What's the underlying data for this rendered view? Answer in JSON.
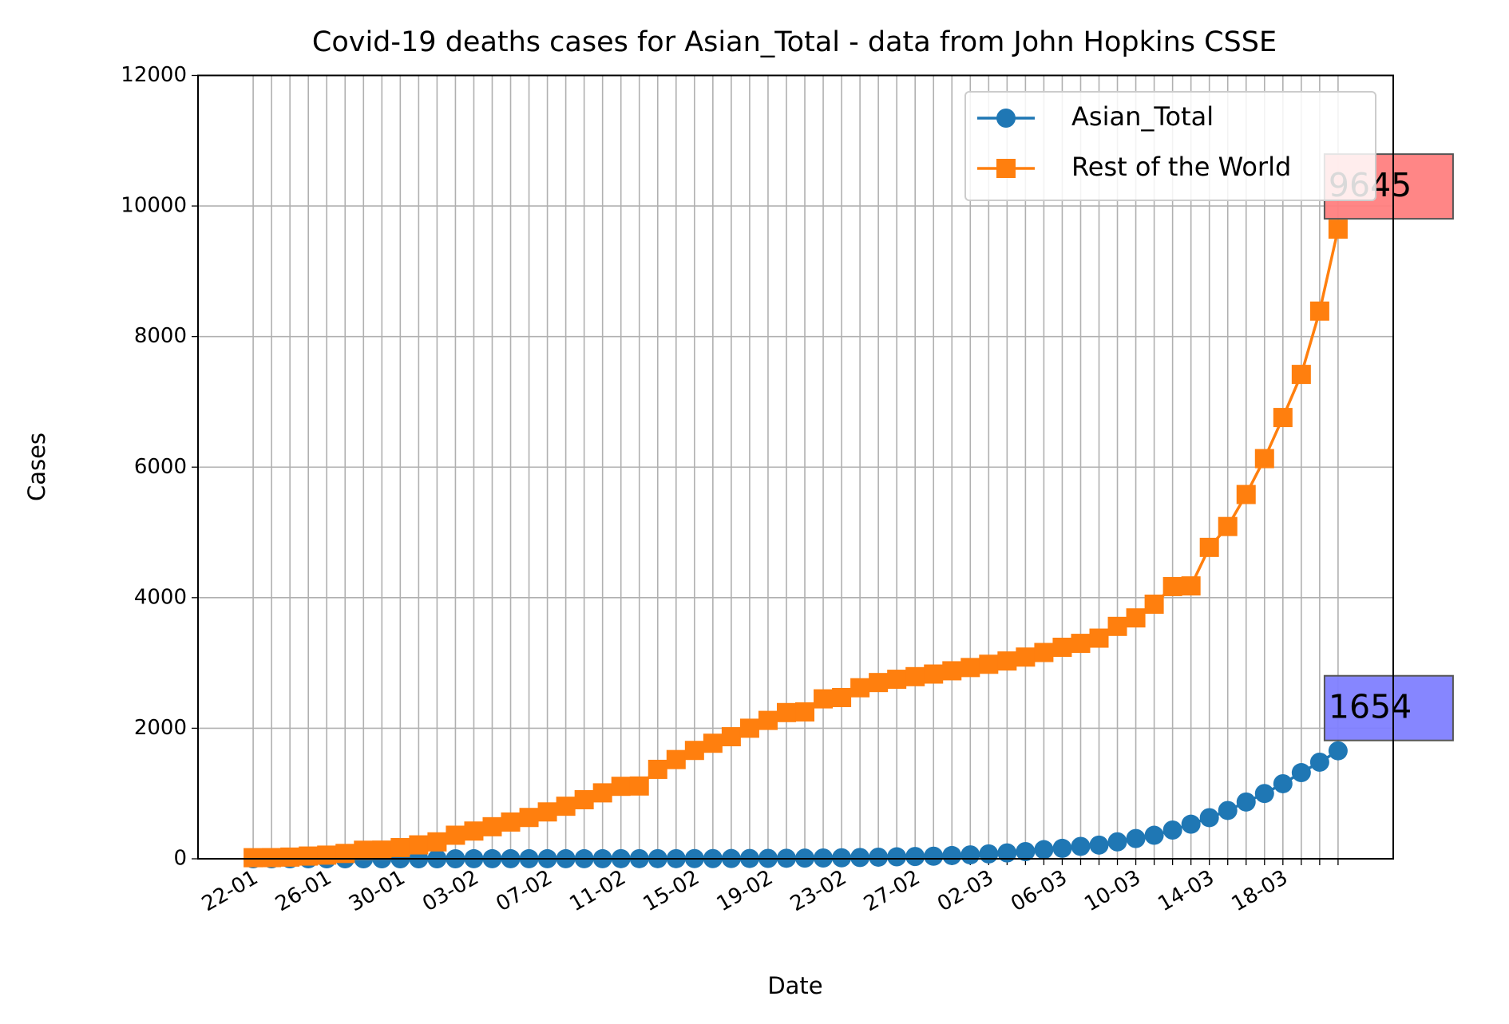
{
  "chart_data": {
    "type": "line",
    "title": "Covid-19 deaths cases for Asian_Total - data from John Hopkins CSSE",
    "xlabel": "Date",
    "ylabel": "Cases",
    "categories": [
      "22-01",
      null,
      null,
      null,
      "26-01",
      null,
      null,
      null,
      "30-01",
      null,
      null,
      null,
      "03-02",
      null,
      null,
      null,
      "07-02",
      null,
      null,
      null,
      "11-02",
      null,
      null,
      null,
      "15-02",
      null,
      null,
      null,
      "19-02",
      null,
      null,
      null,
      "23-02",
      null,
      null,
      null,
      "27-02",
      null,
      null,
      null,
      "02-03",
      null,
      null,
      null,
      "06-03",
      null,
      null,
      null,
      "10-03",
      null,
      null,
      null,
      "14-03",
      null,
      null,
      null,
      "18-03",
      null,
      null,
      null
    ],
    "series": [
      {
        "name": "Asian_Total",
        "color": "#1f77b4",
        "marker": "circle",
        "label_color": "#8080ff",
        "values": [
          0,
          0,
          0,
          0,
          0,
          0,
          0,
          0,
          0,
          0,
          0,
          0,
          1,
          1,
          1,
          1,
          1,
          1,
          1,
          1,
          2,
          2,
          2,
          2,
          3,
          3,
          4,
          5,
          6,
          8,
          10,
          12,
          15,
          20,
          25,
          30,
          35,
          40,
          50,
          60,
          75,
          90,
          110,
          140,
          160,
          190,
          210,
          260,
          310,
          360,
          440,
          530,
          630,
          740,
          870,
          1000,
          1150,
          1320,
          1480,
          1654
        ],
        "value_labels": [
          null,
          null,
          null,
          null,
          null,
          null,
          null,
          null,
          null,
          null,
          null,
          null,
          null,
          null,
          null,
          null,
          null,
          null,
          null,
          null,
          null,
          null,
          null,
          null,
          null,
          null,
          null,
          null,
          null,
          null,
          null,
          null,
          null,
          null,
          null,
          null,
          null,
          null,
          null,
          null,
          null,
          null,
          null,
          null,
          null,
          null,
          null,
          null,
          null,
          null,
          null,
          null,
          null,
          null,
          null,
          null,
          null,
          null,
          null,
          "1654"
        ]
      },
      {
        "name": "Rest of the World",
        "color": "#ff7f0e",
        "marker": "square",
        "label_color": "#ff8080",
        "values": [
          17,
          18,
          26,
          42,
          56,
          82,
          131,
          133,
          171,
          213,
          259,
          361,
          425,
          491,
          563,
          633,
          718,
          805,
          905,
          1010,
          1110,
          1115,
          1370,
          1520,
          1660,
          1770,
          1870,
          2000,
          2120,
          2240,
          2250,
          2450,
          2470,
          2620,
          2700,
          2750,
          2790,
          2830,
          2880,
          2930,
          2980,
          3030,
          3090,
          3160,
          3240,
          3300,
          3380,
          3560,
          3690,
          3900,
          4170,
          4180,
          4770,
          5090,
          5580,
          6130,
          6760,
          7420,
          8390,
          9645
        ],
        "value_labels": [
          null,
          null,
          null,
          null,
          null,
          null,
          null,
          null,
          null,
          null,
          null,
          null,
          null,
          null,
          null,
          null,
          null,
          null,
          null,
          null,
          null,
          null,
          null,
          null,
          null,
          null,
          null,
          null,
          null,
          null,
          null,
          null,
          null,
          null,
          null,
          null,
          null,
          null,
          null,
          null,
          null,
          null,
          null,
          null,
          null,
          null,
          null,
          null,
          null,
          null,
          null,
          null,
          null,
          null,
          null,
          null,
          null,
          null,
          null,
          "9645"
        ]
      }
    ],
    "ylim": [
      0,
      12000
    ],
    "yticks": [
      0,
      2000,
      4000,
      6000,
      8000,
      10000,
      12000
    ],
    "grid": true,
    "legend": "upper right"
  }
}
